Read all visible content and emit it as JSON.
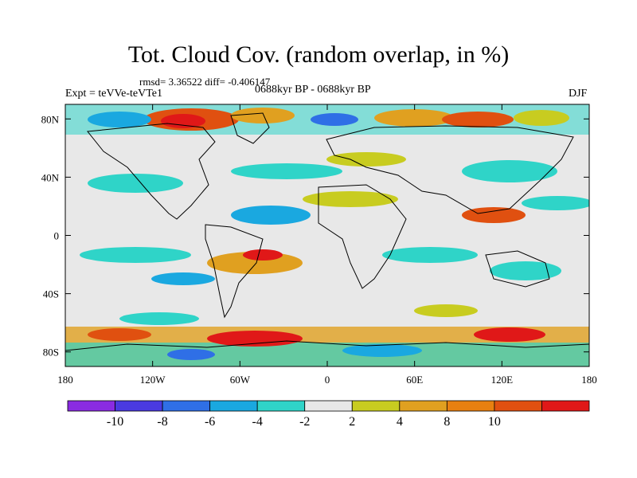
{
  "chart_data": {
    "type": "heatmap",
    "title": "Tot. Cloud Cov. (random overlap, in %)",
    "stats_text": "rmsd= 3.36522 diff= -0.406147",
    "experiment_text": "Expt = teVVe-teVTe1",
    "period_text": "0688kyr BP - 0688kyr BP",
    "season_text": "DJF",
    "x_axis": {
      "range": [
        -180,
        180
      ],
      "ticks": [
        {
          "value": -180,
          "label": "180"
        },
        {
          "value": -120,
          "label": "120W"
        },
        {
          "value": -60,
          "label": "60W"
        },
        {
          "value": 0,
          "label": "0"
        },
        {
          "value": 60,
          "label": "60E"
        },
        {
          "value": 120,
          "label": "120E"
        },
        {
          "value": 180,
          "label": "180"
        }
      ]
    },
    "y_axis": {
      "range": [
        -90,
        90
      ],
      "ticks": [
        {
          "value": 80,
          "label": "80N"
        },
        {
          "value": 40,
          "label": "40N"
        },
        {
          "value": 0,
          "label": "0"
        },
        {
          "value": -40,
          "label": "40S"
        },
        {
          "value": -80,
          "label": "80S"
        }
      ]
    },
    "colorbar": {
      "colors": [
        "#8a2be2",
        "#4a3ae0",
        "#2f6fe6",
        "#1aa8e0",
        "#2fd4c8",
        "#e8e8e8",
        "#c8cc20",
        "#e0a020",
        "#e88010",
        "#e05010",
        "#e01818"
      ],
      "levels": [
        -10,
        -8,
        -6,
        -4,
        -2,
        2,
        4,
        8,
        10
      ],
      "labels": [
        "-10",
        "-8",
        "-6",
        "-4",
        "-2",
        "2",
        "4",
        "8",
        "10"
      ]
    }
  }
}
